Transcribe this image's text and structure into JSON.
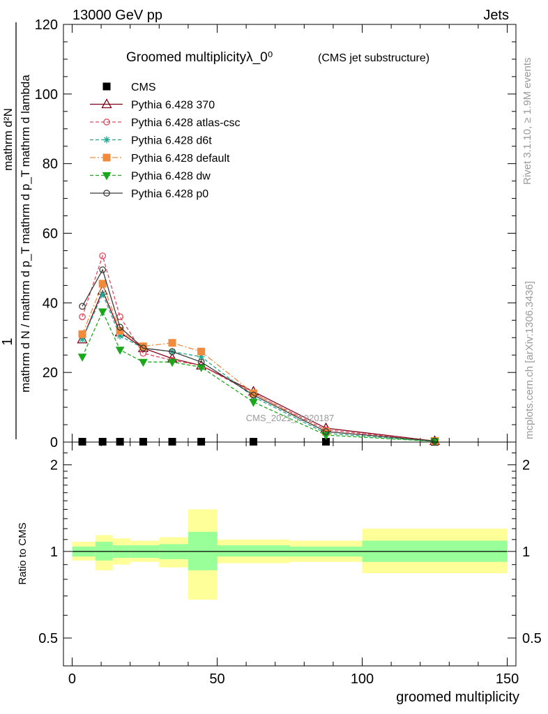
{
  "header": {
    "left_label": "13000 GeV pp",
    "right_label": "Jets"
  },
  "side_notes": {
    "rivet": "Rivet 3.1.10, ≥ 1.9M events",
    "mcplots": "mcplots.cern.ch [arXiv:1306.3436]"
  },
  "watermark": "CMS_2021_I1920187",
  "chart_data": [
    {
      "type": "line",
      "panel": "main",
      "title": "Groomed multiplicityλ_0⁰",
      "subtitle": "(CMS jet substructure)",
      "ylabel_numerator": "1",
      "ylabel_denominator": "mathrm d N / mathrm d p_T mathrm d p_T mathrm d lambda",
      "ylabel_top": "mathrm d²N",
      "ylim": [
        0,
        120
      ],
      "yticks": [
        0,
        20,
        40,
        60,
        80,
        100,
        120
      ],
      "x": [
        3.5,
        10.5,
        16.5,
        24.5,
        34.5,
        44.5,
        62.5,
        87.5,
        125
      ],
      "series": [
        {
          "name": "CMS",
          "color": "#000000",
          "marker": "square",
          "dash": "none",
          "values": [
            0.1,
            0.1,
            0.1,
            0.1,
            0.1,
            0.1,
            0.1,
            0.1,
            0.1
          ]
        },
        {
          "name": "Pythia 6.428 370",
          "color": "#7f0016",
          "marker": "triangle-open",
          "dash": "solid",
          "values": [
            29.5,
            43.5,
            31.5,
            27,
            24,
            22,
            14.5,
            4,
            0.3
          ]
        },
        {
          "name": "Pythia 6.428 atlas-csc",
          "color": "#e8425a",
          "marker": "circle-open",
          "dash": "dashed",
          "values": [
            36,
            53.5,
            36,
            25.5,
            23.5,
            22,
            14,
            3.5,
            0.3
          ]
        },
        {
          "name": "Pythia 6.428 d6t",
          "color": "#1aa88c",
          "marker": "star",
          "dash": "dashed",
          "values": [
            29.5,
            42.5,
            30.5,
            27,
            26,
            24.5,
            13,
            2.5,
            0.2
          ]
        },
        {
          "name": "Pythia 6.428 default",
          "color": "#f08a3c",
          "marker": "square-filled",
          "dash": "dashdot",
          "values": [
            31,
            45.5,
            32,
            27.5,
            28.5,
            26,
            14,
            3,
            0.3
          ]
        },
        {
          "name": "Pythia 6.428 dw",
          "color": "#1aa81a",
          "marker": "triangle-down-filled",
          "dash": "dashed",
          "values": [
            24.5,
            37.5,
            26.5,
            23,
            23,
            21.5,
            11.5,
            2,
            0.2
          ]
        },
        {
          "name": "Pythia 6.428 p0",
          "color": "#3a3a3a",
          "marker": "circle-open",
          "dash": "solid",
          "values": [
            39,
            49.5,
            33,
            27,
            26,
            23,
            13.5,
            3,
            0.3
          ]
        }
      ]
    },
    {
      "type": "area",
      "panel": "ratio",
      "ylabel": "Ratio to CMS",
      "xlabel": "groomed multiplicity",
      "xlim": [
        -3,
        153
      ],
      "xticks": [
        0,
        50,
        100,
        150
      ],
      "ylim_log": [
        0.4,
        2.4
      ],
      "yticks": [
        0.5,
        1,
        2
      ],
      "reference": 1,
      "bins": [
        {
          "x_low": 0,
          "x_high": 8,
          "stat_low": 0.96,
          "stat_high": 1.04,
          "total_low": 0.93,
          "total_high": 1.08
        },
        {
          "x_low": 8,
          "x_high": 14,
          "stat_low": 0.93,
          "stat_high": 1.08,
          "total_low": 0.86,
          "total_high": 1.14
        },
        {
          "x_low": 14,
          "x_high": 20,
          "stat_low": 0.95,
          "stat_high": 1.05,
          "total_low": 0.9,
          "total_high": 1.11
        },
        {
          "x_low": 20,
          "x_high": 30,
          "stat_low": 0.95,
          "stat_high": 1.05,
          "total_low": 0.92,
          "total_high": 1.09
        },
        {
          "x_low": 30,
          "x_high": 40,
          "stat_low": 0.94,
          "stat_high": 1.06,
          "total_low": 0.88,
          "total_high": 1.12
        },
        {
          "x_low": 40,
          "x_high": 50,
          "stat_low": 0.86,
          "stat_high": 1.17,
          "total_low": 0.68,
          "total_high": 1.4
        },
        {
          "x_low": 50,
          "x_high": 75,
          "stat_low": 0.96,
          "stat_high": 1.05,
          "total_low": 0.91,
          "total_high": 1.1
        },
        {
          "x_low": 75,
          "x_high": 100,
          "stat_low": 0.96,
          "stat_high": 1.04,
          "total_low": 0.92,
          "total_high": 1.09
        },
        {
          "x_low": 100,
          "x_high": 150,
          "stat_low": 0.92,
          "stat_high": 1.09,
          "total_low": 0.84,
          "total_high": 1.2
        }
      ],
      "colors": {
        "stat": "#99ff99",
        "total": "#ffff99",
        "reference_line": "#000000"
      }
    }
  ]
}
